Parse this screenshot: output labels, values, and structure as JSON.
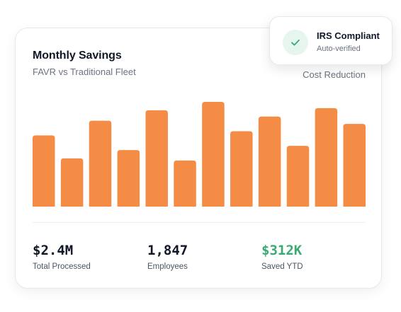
{
  "card": {
    "title": "Monthly Savings",
    "subtitle": "FAVR vs Traditional Fleet",
    "legend_label": "Cost Reduction"
  },
  "badge": {
    "title": "IRS Compliant",
    "subtitle": "Auto-verified",
    "icon": "check-icon",
    "icon_color": "#3aa974",
    "icon_bg": "#e6f6ee"
  },
  "stats": [
    {
      "value": "$2.4M",
      "label": "Total Processed"
    },
    {
      "value": "1,847",
      "label": "Employees"
    },
    {
      "value": "$312K",
      "label": "Saved YTD",
      "color": "#3aa974"
    }
  ],
  "chart_data": {
    "type": "bar",
    "series": [
      {
        "values": [
          68,
          46,
          82,
          54,
          92,
          44,
          100,
          72,
          86,
          58,
          94,
          79
        ]
      }
    ],
    "ylim": [
      0,
      100
    ],
    "bar_color": "#f58c45",
    "grid": false
  }
}
